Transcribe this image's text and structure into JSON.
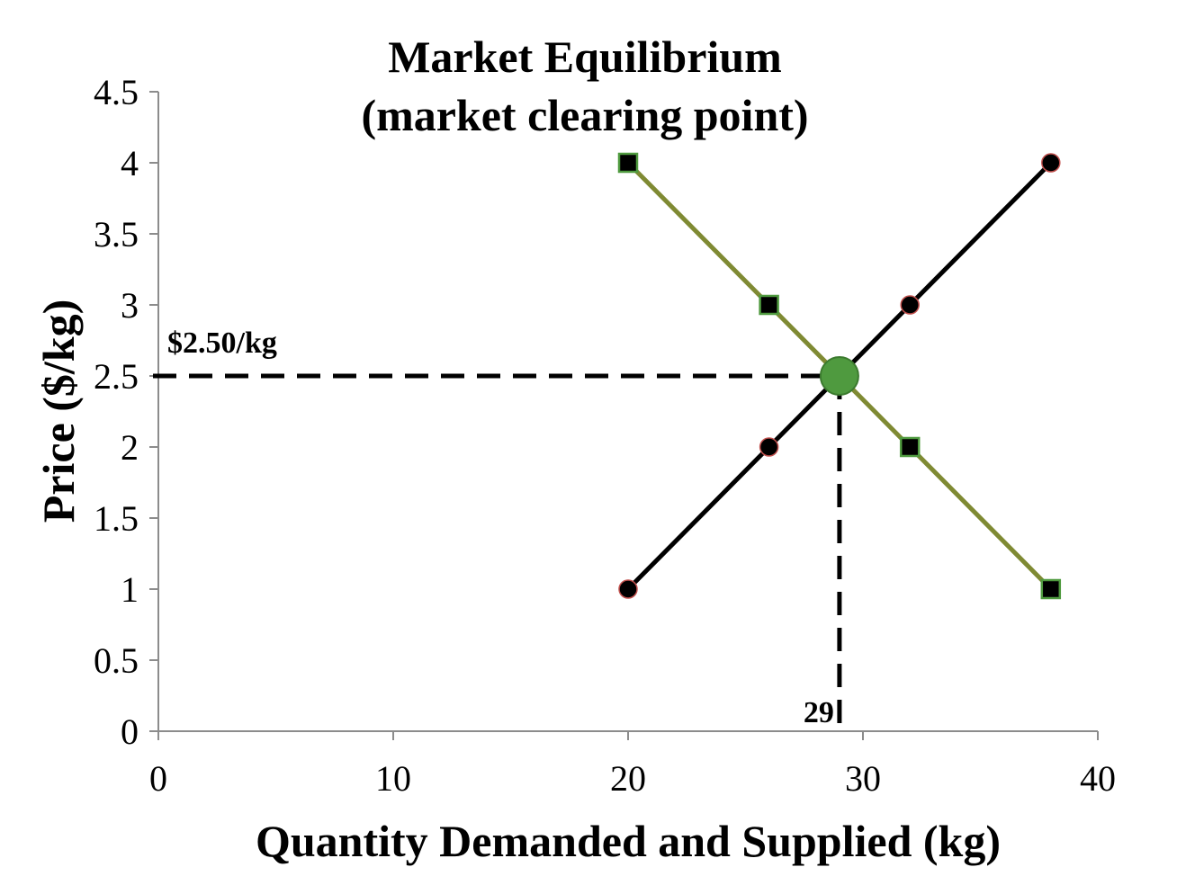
{
  "chart_data": {
    "type": "line",
    "title": "Market Equilibrium",
    "subtitle": "(market clearing point)",
    "xlabel": "Quantity Demanded and Supplied (kg)",
    "ylabel": "Price ($/kg)",
    "xlim": [
      0,
      40
    ],
    "ylim": [
      0,
      4.5
    ],
    "xticks": [
      0,
      10,
      20,
      30,
      40
    ],
    "yticks": [
      0,
      0.5,
      1,
      1.5,
      2,
      2.5,
      3,
      3.5,
      4,
      4.5
    ],
    "xtick_labels": [
      "0",
      "10",
      "20",
      "30",
      "40"
    ],
    "ytick_labels": [
      "0",
      "0.5",
      "1",
      "1.5",
      "2",
      "2.5",
      "3",
      "3.5",
      "4",
      "4.5"
    ],
    "grid": false,
    "legend": "none",
    "series": [
      {
        "key": "supply",
        "marker": "circle",
        "color": "#000000",
        "marker_edge": "#c0504d",
        "x": [
          20,
          26,
          32,
          38
        ],
        "y": [
          1,
          2,
          3,
          4
        ]
      },
      {
        "key": "demand",
        "marker": "square",
        "color": "#7f8a33",
        "marker_edge": "#4f9a3f",
        "x": [
          20,
          26,
          32,
          38
        ],
        "y": [
          4,
          3,
          2,
          1
        ]
      }
    ],
    "equilibrium": {
      "x": 29,
      "y": 2.5,
      "color": "#4f9a3f",
      "price_label": "$2.50/kg",
      "quantity_label": "29"
    }
  }
}
